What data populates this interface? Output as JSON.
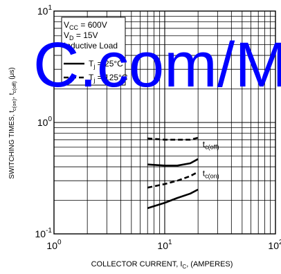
{
  "chart_data": {
    "type": "line",
    "x_scale": "log",
    "y_scale": "log",
    "xlim": [
      1,
      100
    ],
    "ylim": [
      0.1,
      10
    ],
    "grid": true,
    "xlabel": {
      "main": "COLLECTOR CURRENT, I",
      "sub": "C",
      "suffix": ", (AMPERES)"
    },
    "ylabel": {
      "main": "SWITCHING TIMES, t",
      "sub1": "c(on)",
      "mid": ", t",
      "sub2": "c(off)",
      "suffix": " (μs)"
    },
    "x_ticks": [
      {
        "base": "10",
        "exp": "0"
      },
      {
        "base": "10",
        "exp": "1"
      },
      {
        "base": "10",
        "exp": "2"
      }
    ],
    "y_ticks": [
      {
        "base": "10",
        "exp": "-1"
      },
      {
        "base": "10",
        "exp": "0"
      },
      {
        "base": "10",
        "exp": "1"
      }
    ],
    "conditions": [
      {
        "main": "V",
        "sub": "CC",
        "suffix": " = 600V"
      },
      {
        "main": "V",
        "sub": "D",
        "suffix": " = 15V"
      },
      {
        "main": "Inductive Load",
        "sub": "",
        "suffix": ""
      }
    ],
    "legend": [
      {
        "style": "solid",
        "main": "T",
        "sub": "j",
        "suffix": " = 25°C"
      },
      {
        "style": "dashed",
        "main": "T",
        "sub": "j",
        "suffix": " = 125°C"
      }
    ],
    "series": [
      {
        "group": "tc(off)",
        "style": "dashed",
        "x": [
          7,
          10,
          13,
          17,
          20
        ],
        "y": [
          0.72,
          0.7,
          0.7,
          0.7,
          0.73
        ]
      },
      {
        "group": "tc(off)",
        "style": "solid",
        "x": [
          7,
          10,
          13,
          17,
          20
        ],
        "y": [
          0.42,
          0.41,
          0.41,
          0.43,
          0.47
        ]
      },
      {
        "group": "tc(on)",
        "style": "dashed",
        "x": [
          7,
          10,
          13,
          17,
          20
        ],
        "y": [
          0.26,
          0.28,
          0.3,
          0.33,
          0.36
        ]
      },
      {
        "group": "tc(on)",
        "style": "solid",
        "x": [
          7,
          10,
          13,
          17,
          20
        ],
        "y": [
          0.17,
          0.19,
          0.21,
          0.23,
          0.25
        ]
      }
    ],
    "annotations": [
      {
        "main": "t",
        "sub": "c(off)",
        "x": 22,
        "y": 0.6
      },
      {
        "main": "t",
        "sub": "c(on)",
        "x": 22,
        "y": 0.33
      }
    ],
    "watermark": "C.com/M"
  }
}
